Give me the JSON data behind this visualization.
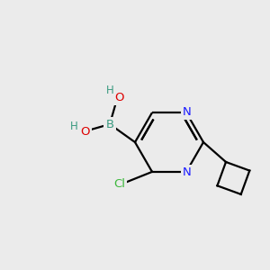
{
  "bg_color": "#ebebeb",
  "atom_colors": {
    "B": "#3a9a80",
    "O": "#dd0000",
    "H": "#3a9a80",
    "Cl": "#3db83d",
    "N": "#1a1aff",
    "C": "#000000"
  },
  "bond_color": "#000000",
  "bond_width": 1.6,
  "figsize": [
    3.0,
    3.0
  ],
  "dpi": 100
}
